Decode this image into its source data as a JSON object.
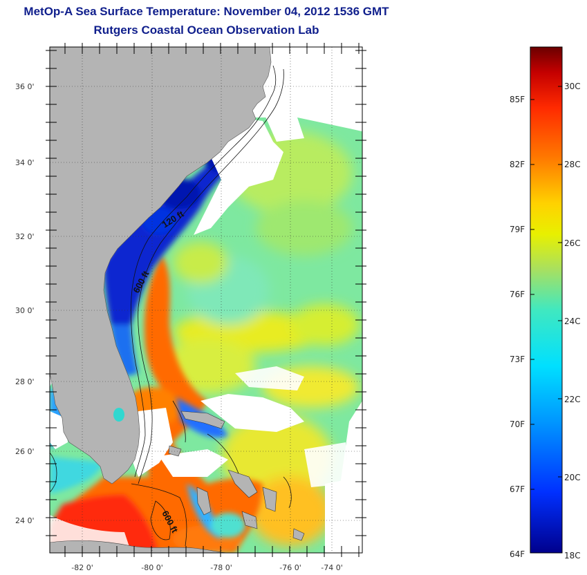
{
  "header": {
    "title": "MetOp-A Sea Surface Temperature:  November 04, 2012 1536 GMT",
    "subtitle": "Rutgers Coastal Ocean Observation Lab"
  },
  "axes": {
    "lat_labels": [
      "36 0'",
      "34 0'",
      "32 0'",
      "30 0'",
      "28 0'",
      "26 0'",
      "24 0'"
    ],
    "lon_labels": [
      "-82 0'",
      "-80 0'",
      "-78 0'",
      "-76 0'",
      "-74 0'"
    ]
  },
  "map": {
    "contour_labels": [
      "120 ft",
      "600 ft",
      "600 ft"
    ]
  },
  "colorbar": {
    "fahrenheit_labels": [
      "85F",
      "82F",
      "79F",
      "76F",
      "73F",
      "70F",
      "67F",
      "64F"
    ],
    "celsius_labels": [
      "30C",
      "28C",
      "26C",
      "24C",
      "22C",
      "20C",
      "18C"
    ],
    "colors": [
      "#6b0000",
      "#c40000",
      "#ff2a00",
      "#ff7a00",
      "#ffd200",
      "#e8f000",
      "#a8e060",
      "#40e8c0",
      "#00e0ff",
      "#0090ff",
      "#0030ff",
      "#00008c"
    ]
  },
  "colors": {
    "land": "#b4b4b4",
    "title": "#0f1e8c",
    "no_data": "#ffffff"
  }
}
